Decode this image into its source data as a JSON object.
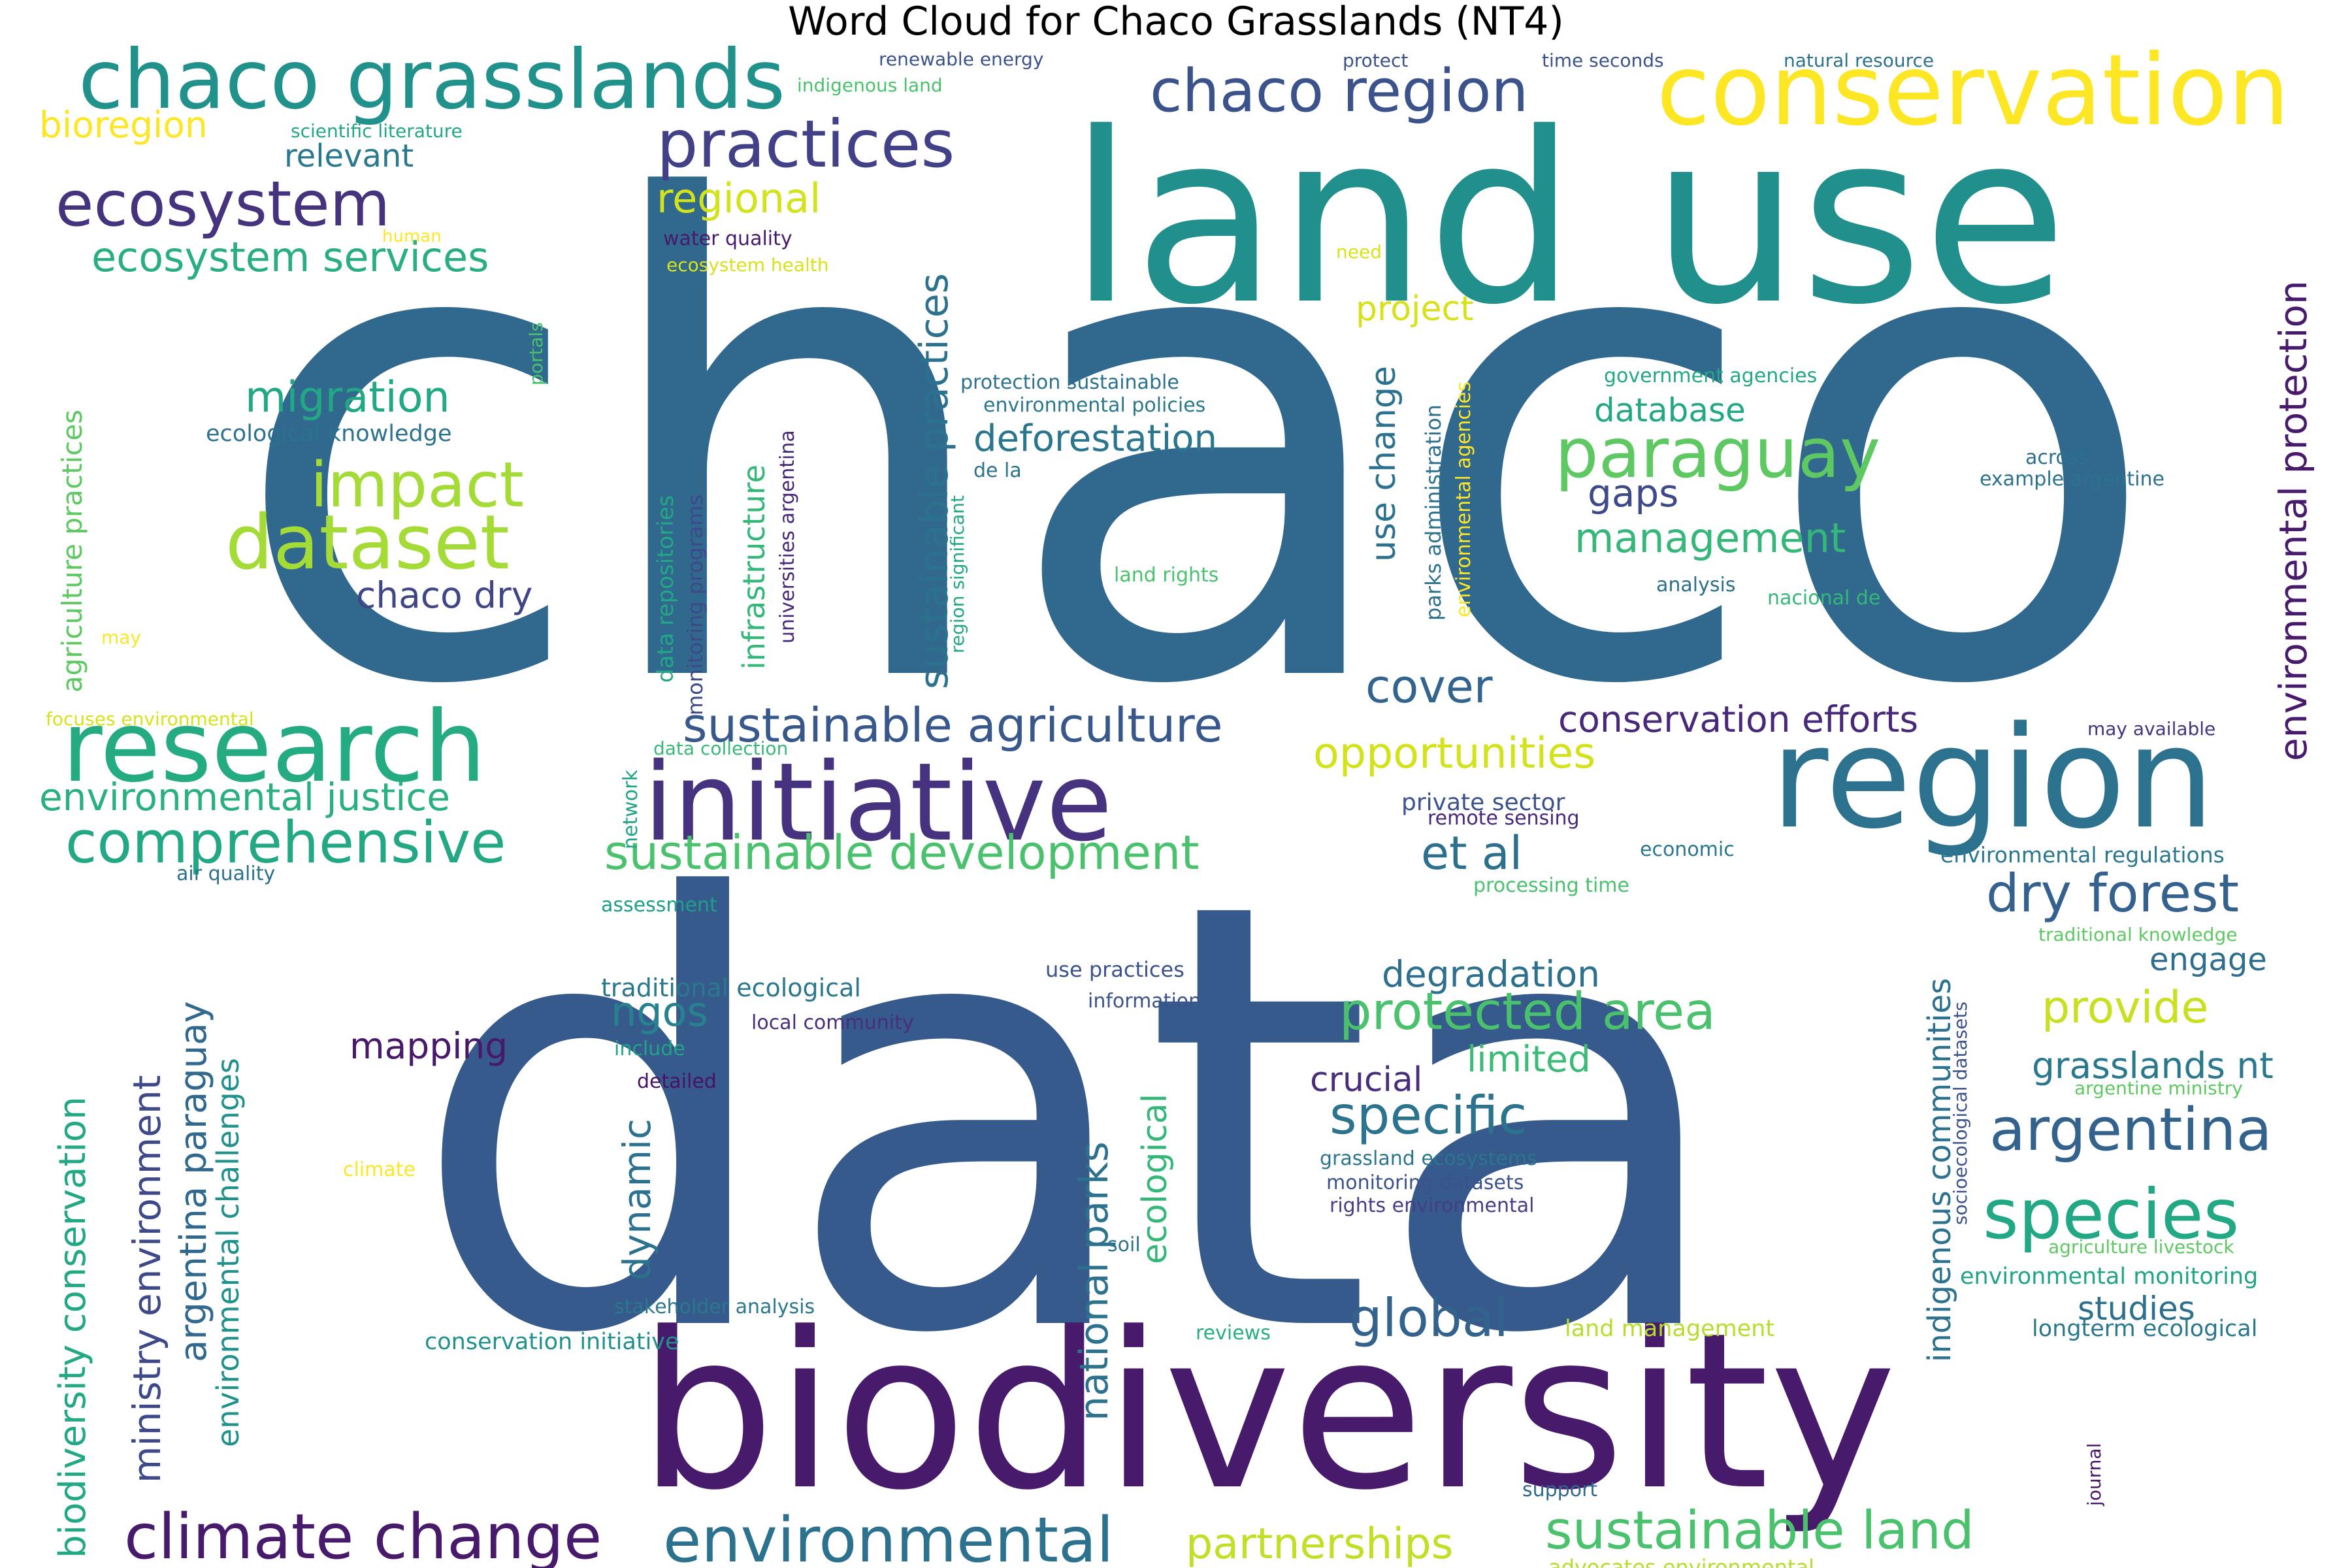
{
  "title": "Word Cloud for Chaco Grasslands (NT4)",
  "palette": {
    "deep_purple": "#481a6c",
    "indigo": "#414487",
    "navy_blue": "#355f8d",
    "steel_blue": "#2a788e",
    "teal": "#21918c",
    "green_teal": "#22a884",
    "sea_green": "#2fb47c",
    "green": "#5ec962",
    "lime": "#a5db36",
    "yellow": "#fde725"
  },
  "words": [
    {
      "text": "chaco",
      "color": "#31688e"
    },
    {
      "text": "data",
      "color": "#375a8c"
    },
    {
      "text": "land use",
      "color": "#21908d"
    },
    {
      "text": "biodiversity",
      "color": "#481a6c"
    },
    {
      "text": "region",
      "color": "#2c728e"
    },
    {
      "text": "conservation",
      "color": "#fde725"
    },
    {
      "text": "chaco grasslands",
      "color": "#21918c"
    },
    {
      "text": "initiative",
      "color": "#46327e"
    },
    {
      "text": "research",
      "color": "#25ab82"
    },
    {
      "text": "practices",
      "color": "#424086"
    },
    {
      "text": "ecosystem",
      "color": "#46337e"
    },
    {
      "text": "paraguay",
      "color": "#5ec962"
    },
    {
      "text": "chaco region",
      "color": "#3b528b"
    },
    {
      "text": "dataset",
      "color": "#a5db36"
    },
    {
      "text": "impact",
      "color": "#a5db36"
    },
    {
      "text": "climate change",
      "color": "#481a6c"
    },
    {
      "text": "environmental",
      "color": "#2c728e"
    },
    {
      "text": "species",
      "color": "#22a884"
    },
    {
      "text": "argentina",
      "color": "#33638d"
    },
    {
      "text": "sustainable agriculture",
      "color": "#38588c"
    },
    {
      "text": "sustainable development",
      "color": "#4ac16d"
    },
    {
      "text": "sustainable land",
      "color": "#4ac16d"
    },
    {
      "text": "comprehensive",
      "color": "#22a884"
    },
    {
      "text": "protected area",
      "color": "#4ac16d"
    },
    {
      "text": "dry forest",
      "color": "#34618d"
    },
    {
      "text": "ecosystem services",
      "color": "#29af7f"
    },
    {
      "text": "migration",
      "color": "#22a884"
    },
    {
      "text": "specific",
      "color": "#2c738e"
    },
    {
      "text": "environmental justice",
      "color": "#2ab07f"
    },
    {
      "text": "opportunities",
      "color": "#d2e21b"
    },
    {
      "text": "partnerships",
      "color": "#c0df25"
    },
    {
      "text": "deforestation",
      "color": "#2a768e"
    },
    {
      "text": "management",
      "color": "#35b779"
    },
    {
      "text": "cover",
      "color": "#32648e"
    },
    {
      "text": "global",
      "color": "#33638d"
    },
    {
      "text": "et al",
      "color": "#2d708e"
    },
    {
      "text": "provide",
      "color": "#c8e020"
    },
    {
      "text": "regional",
      "color": "#d2e21b"
    },
    {
      "text": "gaps",
      "color": "#3e4989"
    },
    {
      "text": "conservation efforts",
      "color": "#482878"
    },
    {
      "text": "mapping",
      "color": "#48186a"
    },
    {
      "text": "chaco dry",
      "color": "#404588"
    },
    {
      "text": "ngos",
      "color": "#26828e"
    },
    {
      "text": "degradation",
      "color": "#2d708e"
    },
    {
      "text": "limited",
      "color": "#3bbb75"
    },
    {
      "text": "crucial",
      "color": "#472d7b"
    },
    {
      "text": "project",
      "color": "#d8e219"
    },
    {
      "text": "database",
      "color": "#22a884"
    },
    {
      "text": "grasslands nt",
      "color": "#2a788e"
    },
    {
      "text": "engage",
      "color": "#2e6e8e"
    },
    {
      "text": "studies",
      "color": "#2d708e"
    },
    {
      "text": "bioregion",
      "color": "#fde725"
    },
    {
      "text": "relevant",
      "color": "#2a788e"
    },
    {
      "text": "land management",
      "color": "#b5de2b"
    },
    {
      "text": "conservation initiative",
      "color": "#21918c"
    },
    {
      "text": "longterm ecological",
      "color": "#2a788e"
    },
    {
      "text": "environmental monitoring",
      "color": "#20a386"
    },
    {
      "text": "environmental regulations",
      "color": "#2a778e"
    },
    {
      "text": "traditional ecological",
      "color": "#2a788e"
    },
    {
      "text": "private sector",
      "color": "#3b528b"
    },
    {
      "text": "ecological knowledge",
      "color": "#2c728e"
    },
    {
      "text": "stakeholder analysis",
      "color": "#2a778e"
    },
    {
      "text": "advocates environmental",
      "color": "#b5de2b"
    },
    {
      "text": "remote sensing",
      "color": "#482878"
    },
    {
      "text": "data collection",
      "color": "#38b977"
    },
    {
      "text": "focuses environmental",
      "color": "#d8e219"
    },
    {
      "text": "may available",
      "color": "#46337e"
    },
    {
      "text": "traditional knowledge",
      "color": "#5ec962"
    },
    {
      "text": "argentine ministry",
      "color": "#5ec962"
    },
    {
      "text": "agriculture livestock",
      "color": "#5ec962"
    },
    {
      "text": "processing time",
      "color": "#4ac16d"
    },
    {
      "text": "economic",
      "color": "#2a788e"
    },
    {
      "text": "assessment",
      "color": "#1f9e89"
    },
    {
      "text": "air quality",
      "color": "#2d708e"
    },
    {
      "text": "use practices",
      "color": "#3b528b"
    },
    {
      "text": "information",
      "color": "#3b528b"
    },
    {
      "text": "local community",
      "color": "#472f7d"
    },
    {
      "text": "include",
      "color": "#20a386"
    },
    {
      "text": "detailed",
      "color": "#471365"
    },
    {
      "text": "climate",
      "color": "#fde725"
    },
    {
      "text": "grassland ecosystems",
      "color": "#2a768e"
    },
    {
      "text": "monitoring datasets",
      "color": "#3b528b"
    },
    {
      "text": "rights environmental",
      "color": "#433e85"
    },
    {
      "text": "soil",
      "color": "#2c728e"
    },
    {
      "text": "reviews",
      "color": "#29af7f"
    },
    {
      "text": "support",
      "color": "#31688e"
    },
    {
      "text": "land rights",
      "color": "#4ac16d"
    },
    {
      "text": "analysis",
      "color": "#2d708e"
    },
    {
      "text": "nacional de",
      "color": "#35b779"
    },
    {
      "text": "across",
      "color": "#2d708e"
    },
    {
      "text": "example argentine",
      "color": "#2c728e"
    },
    {
      "text": "government agencies",
      "color": "#22a884"
    },
    {
      "text": "protection sustainable",
      "color": "#2c728e"
    },
    {
      "text": "environmental policies",
      "color": "#2a788e"
    },
    {
      "text": "de la",
      "color": "#2c728e"
    },
    {
      "text": "water quality",
      "color": "#481a6c"
    },
    {
      "text": "ecosystem health",
      "color": "#d8e219"
    },
    {
      "text": "need",
      "color": "#d8e219"
    },
    {
      "text": "human",
      "color": "#fde725"
    },
    {
      "text": "scientific literature",
      "color": "#22a884"
    },
    {
      "text": "indigenous land",
      "color": "#4ac16d"
    },
    {
      "text": "renewable energy",
      "color": "#3b528b"
    },
    {
      "text": "protect",
      "color": "#3b528b"
    },
    {
      "text": "time seconds",
      "color": "#3b528b"
    },
    {
      "text": "natural resource",
      "color": "#2c728e"
    },
    {
      "text": "may",
      "color": "#fde725"
    },
    {
      "text": "agriculture practices",
      "color": "#5ec962"
    },
    {
      "text": "portals",
      "color": "#4ac16d"
    },
    {
      "text": "biodiversity conservation",
      "color": "#22a884"
    },
    {
      "text": "ministry environment",
      "color": "#3e4989"
    },
    {
      "text": "argentina paraguay",
      "color": "#31688e"
    },
    {
      "text": "environmental challenges",
      "color": "#21918c"
    },
    {
      "text": "data repositories",
      "color": "#22a884"
    },
    {
      "text": "monitoring programs",
      "color": "#3e4989"
    },
    {
      "text": "universities argentina",
      "color": "#482878"
    },
    {
      "text": "infrastructure",
      "color": "#35b779"
    },
    {
      "text": "sustainable practices",
      "color": "#2c728e"
    },
    {
      "text": "region significant",
      "color": "#22a884"
    },
    {
      "text": "use change",
      "color": "#2c728e"
    },
    {
      "text": "parks administration",
      "color": "#2c728e"
    },
    {
      "text": "environmental agencies",
      "color": "#fde725"
    },
    {
      "text": "environmental protection",
      "color": "#481a6c"
    },
    {
      "text": "network",
      "color": "#20a386"
    },
    {
      "text": "dynamic",
      "color": "#2c728e"
    },
    {
      "text": "national parks",
      "color": "#2c728e"
    },
    {
      "text": "ecological",
      "color": "#35b779"
    },
    {
      "text": "indigenous communities",
      "color": "#2c728e"
    },
    {
      "text": "socioecological datasets",
      "color": "#3b528b"
    },
    {
      "text": "journal",
      "color": "#481a6c"
    }
  ]
}
